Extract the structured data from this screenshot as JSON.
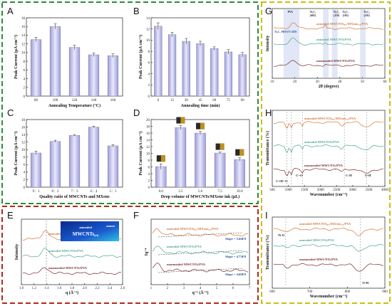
{
  "colors": {
    "green": "#2e8b3a",
    "red": "#b02a1a",
    "yellow": "#c8c010",
    "bar": "#b8b8e6",
    "orange": "#d4763a",
    "teal": "#4aa88a",
    "darkred": "#7a2a2a"
  },
  "panels": {
    "A": "A",
    "B": "B",
    "C": "C",
    "D": "D",
    "E": "E",
    "F": "F",
    "G": "G",
    "H": "H",
    "I": "I"
  },
  "chart_data": [
    {
      "panel": "A",
      "type": "bar",
      "categories": [
        "80",
        "100",
        "120",
        "140",
        "160"
      ],
      "values": [
        13.0,
        16.0,
        11.2,
        9.5,
        9.3
      ],
      "errors": [
        0.5,
        0.6,
        0.5,
        0.4,
        0.4
      ],
      "xlabel": "Annealing Temperature (°C)",
      "ylabel": "Peak Current (μA cm⁻²)",
      "yticks": [
        "0",
        "2",
        "4",
        "6",
        "8",
        "10",
        "12",
        "14",
        "16",
        "18"
      ],
      "ylim": [
        0,
        18
      ]
    },
    {
      "panel": "B",
      "type": "bar",
      "categories": [
        "0",
        "15",
        "30",
        "45",
        "60",
        "75",
        "90"
      ],
      "values": [
        12.5,
        11.0,
        9.8,
        9.4,
        8.5,
        7.9,
        7.4
      ],
      "errors": [
        0.6,
        0.4,
        0.5,
        0.4,
        0.3,
        0.4,
        0.4
      ],
      "xlabel": "Annealing time (min)",
      "ylabel": "Peak Current (μA cm⁻²)",
      "yticks": [
        "0",
        "2",
        "4",
        "6",
        "8",
        "10",
        "12",
        "14"
      ],
      "ylim": [
        0,
        14
      ]
    },
    {
      "panel": "C",
      "type": "bar",
      "categories": [
        "9：1",
        "8：2",
        "7：3",
        "6：4",
        "5：5"
      ],
      "values": [
        9.1,
        12.2,
        13.8,
        16.0,
        11.0
      ],
      "errors": [
        0.5,
        0.3,
        0.2,
        0.2,
        0.3
      ],
      "xlabel": "Quality ratio of MWCNTs and MXene",
      "ylabel": "Peak Current (μA cm⁻²)",
      "yticks": [
        "0",
        "2",
        "4",
        "6",
        "8",
        "10",
        "12",
        "14",
        "16",
        "18"
      ],
      "ylim": [
        0,
        18
      ]
    },
    {
      "panel": "D",
      "type": "bar",
      "categories": [
        "0.0",
        "2.5",
        "5.0",
        "7.5",
        "10.0"
      ],
      "values": [
        6.1,
        17.6,
        16.0,
        10.1,
        8.2
      ],
      "errors": [
        0.8,
        0.6,
        0.5,
        0.3,
        0.5
      ],
      "xlabel": "Drop volume of MWCNTs/MXene ink (μL)",
      "ylabel": "Peak Current (μA cm⁻²)",
      "yticks": [
        "0",
        "2",
        "4",
        "6",
        "8",
        "10",
        "12",
        "14",
        "16",
        "18",
        "20"
      ],
      "ylim": [
        0,
        20
      ]
    },
    {
      "panel": "E",
      "type": "line",
      "xlabel": "q (Å⁻¹)",
      "ylabel": "Intensity",
      "xticks": [
        "1.0",
        "1.2",
        "1.4",
        "1.6",
        "1.8",
        "2.0",
        "2.2",
        "2.4",
        "2.6"
      ],
      "series": [
        {
          "name": "annealed MWCNTs₀.₆/MXene₀.₄/PVA"
        },
        {
          "name": "annealed MWCNTs/PVA"
        },
        {
          "name": "unannealed MWCNTs/PVA"
        }
      ],
      "inset": {
        "line1": "annealed",
        "line2": "MWCNTs₀.₆",
        "right": "annea"
      }
    },
    {
      "panel": "F",
      "type": "line",
      "xlabel": "q⁻¹ (Å⁻¹)",
      "ylabel": "Iq⁻⁴",
      "xticks": [
        "1",
        "2",
        "3",
        "4",
        "5",
        "6",
        "7"
      ],
      "series": [
        {
          "name": "annealed MWCNTs₀.₆/MXene₀.₄/PVA",
          "slope": "Slope = 5.66E9"
        },
        {
          "name": "annealed MWCNTs/PVA",
          "slope": "Slope = 4.73E9"
        },
        {
          "name": "unannealed MWCNTs/PVA",
          "slope": "Slope = 4.60E9"
        }
      ]
    },
    {
      "panel": "G",
      "type": "line",
      "xlabel": "2θ (degree)",
      "ylabel": "Intensity",
      "xticks": [
        "10",
        "20",
        "30",
        "40",
        "50",
        "60"
      ],
      "series": [
        {
          "name": "annealed MWCNTs₀.₆/MXene₀.₄/PVA"
        },
        {
          "name": "annealed MWCNTs/PVA"
        },
        {
          "name": "unannealed MWCNTs/PVA"
        }
      ],
      "peaks": [
        "PVA",
        "Ti₃C₂",
        "(002)",
        "Ti₃C₂",
        "(110)",
        "Ti₃C₂",
        "(103)",
        "Ti₃C₂",
        "(105)"
      ],
      "pdf": "Ti₃C₂ PDF#75-2195"
    },
    {
      "panel": "H",
      "type": "line",
      "xlabel": "Wavenumber (cm⁻¹)",
      "ylabel": "Transmittance (%)",
      "xticks": [
        "500",
        "1000",
        "1500",
        "2000",
        "2500",
        "3000",
        "3500",
        "4000"
      ],
      "series": [
        {
          "name": "annealed MWCNTs₀.₆/MXene₀.₄/PVA"
        },
        {
          "name": "annealed MWCNTs/PVA"
        },
        {
          "name": "unannealed MWCNTs/PVA"
        }
      ],
      "labels": [
        "C-O",
        "C-O",
        "C=O",
        "C-H",
        "O-H"
      ]
    },
    {
      "panel": "I",
      "type": "line",
      "xlabel": "Wavenumber (cm⁻¹)",
      "ylabel": "Transmittance (%)",
      "xticks": [
        "600",
        "700",
        "800",
        "900"
      ],
      "series": [
        {
          "name": "annealed MWCNTs₀.₆/MXene₀.₄/PVA"
        },
        {
          "name": "annealed MWCNTs/PVA"
        },
        {
          "name": "unannealed MWCNTs/PVA"
        }
      ],
      "labels": [
        "Ti-O",
        "O-H"
      ]
    }
  ]
}
